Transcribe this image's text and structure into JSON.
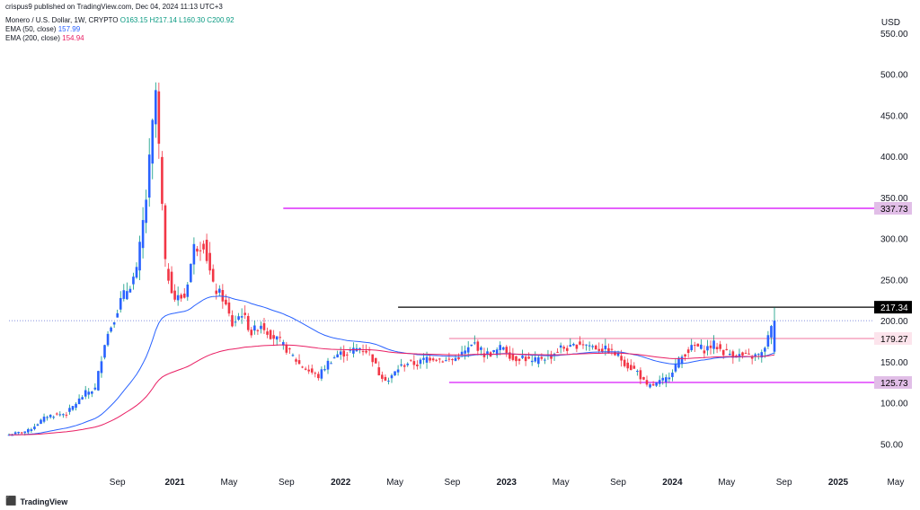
{
  "header": {
    "text": "crispus9 published on TradingView.com, Dec 04, 2024 11:13 UTC+3"
  },
  "legend": {
    "symbol": "Monero / U.S. Dollar, 1W, CRYPTO",
    "ohlc": "O163.15 H217.14 L160.30 C200.92",
    "ema50_label": "EMA (50, close)",
    "ema50_value": "157.99",
    "ema200_label": "EMA (200, close)",
    "ema200_value": "154.94"
  },
  "currency": "USD",
  "footer": {
    "brand": "TradingView"
  },
  "colors": {
    "up": "#2962ff",
    "down": "#f23645",
    "ema50": "#2962ff",
    "ema200": "#e91e63",
    "magenta": "#d500f9",
    "black": "#000000",
    "pink": "#f48fb1"
  },
  "chart_data": {
    "type": "candlestick",
    "title": "Monero / U.S. Dollar, 1W, CRYPTO",
    "ylabel": "USD",
    "ylim": [
      0,
      560
    ],
    "y_ticks": [
      50,
      100,
      150,
      200,
      250,
      300,
      350,
      400,
      450,
      500,
      550
    ],
    "y_tick_labels": [
      "50.00",
      "100.00",
      "150.00",
      "200.00",
      "250.00",
      "300.00",
      "350.00",
      "400.00",
      "450.00",
      "500.00",
      "550.00"
    ],
    "x_ticks": [
      "Sep",
      "2021",
      "May",
      "Sep",
      "2022",
      "May",
      "Sep",
      "2023",
      "May",
      "Sep",
      "2024",
      "May",
      "Sep",
      "2025",
      "May"
    ],
    "x_tick_bold": [
      false,
      true,
      false,
      false,
      true,
      false,
      false,
      true,
      false,
      false,
      true,
      false,
      false,
      true,
      false
    ],
    "x_tick_index": [
      34,
      52,
      69,
      87,
      104,
      121,
      139,
      156,
      173,
      191,
      208,
      225,
      243,
      260,
      278
    ],
    "horizontal_levels": [
      {
        "value": 337.73,
        "label": "337.73",
        "kind": "magenta",
        "from_index": 86
      },
      {
        "value": 217.34,
        "label": "217.34",
        "kind": "black",
        "from_index": 122
      },
      {
        "value": 200.92,
        "label": "",
        "kind": "dotted",
        "from_index": 0
      },
      {
        "value": 179.27,
        "label": "179.27",
        "kind": "pink",
        "from_index": 138
      },
      {
        "value": 125.73,
        "label": "125.73",
        "kind": "magenta",
        "from_index": 138
      }
    ],
    "series": [
      {
        "name": "EMA (50, close)",
        "last": 157.99
      },
      {
        "name": "EMA (200, close)",
        "last": 154.94
      }
    ],
    "weekly_close_anchors": [
      [
        0,
        62
      ],
      [
        6,
        67
      ],
      [
        12,
        85
      ],
      [
        18,
        88
      ],
      [
        24,
        113
      ],
      [
        27,
        118
      ],
      [
        30,
        175
      ],
      [
        35,
        225
      ],
      [
        40,
        260
      ],
      [
        43,
        350
      ],
      [
        46,
        480
      ],
      [
        49,
        268
      ],
      [
        52,
        228
      ],
      [
        55,
        230
      ],
      [
        58,
        290
      ],
      [
        61,
        296
      ],
      [
        64,
        242
      ],
      [
        67,
        229
      ],
      [
        70,
        196
      ],
      [
        73,
        211
      ],
      [
        76,
        186
      ],
      [
        79,
        197
      ],
      [
        82,
        184
      ],
      [
        85,
        175
      ],
      [
        88,
        162
      ],
      [
        91,
        148
      ],
      [
        94,
        140
      ],
      [
        97,
        133
      ],
      [
        100,
        150
      ],
      [
        103,
        160
      ],
      [
        106,
        162
      ],
      [
        110,
        168
      ],
      [
        113,
        163
      ],
      [
        116,
        137
      ],
      [
        119,
        128
      ],
      [
        122,
        143
      ],
      [
        125,
        150
      ],
      [
        128,
        148
      ],
      [
        131,
        156
      ],
      [
        134,
        156
      ],
      [
        137,
        152
      ],
      [
        140,
        155
      ],
      [
        143,
        163
      ],
      [
        146,
        173
      ],
      [
        149,
        160
      ],
      [
        152,
        162
      ],
      [
        155,
        170
      ],
      [
        158,
        154
      ],
      [
        161,
        157
      ],
      [
        164,
        150
      ],
      [
        167,
        156
      ],
      [
        170,
        158
      ],
      [
        173,
        168
      ],
      [
        176,
        167
      ],
      [
        179,
        174
      ],
      [
        182,
        171
      ],
      [
        185,
        167
      ],
      [
        188,
        165
      ],
      [
        191,
        158
      ],
      [
        194,
        146
      ],
      [
        197,
        139
      ],
      [
        200,
        120
      ],
      [
        203,
        124
      ],
      [
        206,
        130
      ],
      [
        209,
        147
      ],
      [
        212,
        162
      ],
      [
        215,
        170
      ],
      [
        218,
        166
      ],
      [
        221,
        172
      ],
      [
        224,
        163
      ],
      [
        227,
        160
      ],
      [
        230,
        158
      ],
      [
        233,
        157
      ],
      [
        236,
        160
      ],
      [
        240,
        200.92
      ]
    ]
  }
}
